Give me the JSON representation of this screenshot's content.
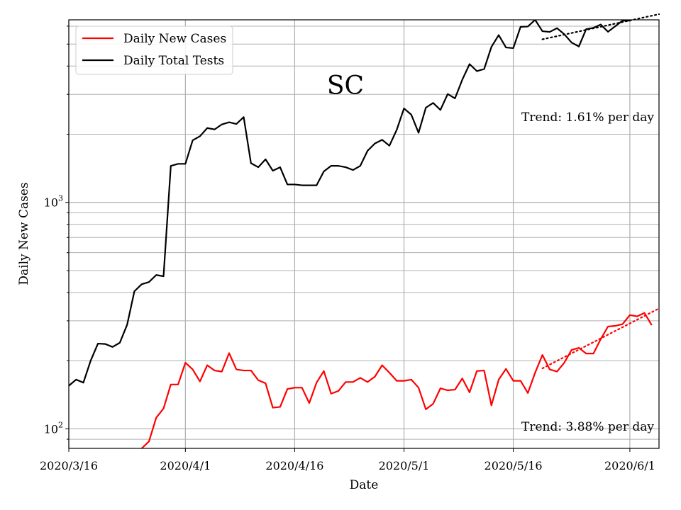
{
  "chart_data": {
    "type": "line",
    "title": "SC",
    "xlabel": "Date",
    "ylabel": "Daily New Cases",
    "y_scale": "log",
    "ylim": [
      82,
      6400
    ],
    "grid": true,
    "legend_position": "top-left",
    "x_range": [
      "2020-03-16",
      "2020-06-05"
    ],
    "x_tick_labels": [
      "2020/3/16",
      "2020/4/1",
      "2020/4/16",
      "2020/5/1",
      "2020/5/16",
      "2020/6/1"
    ],
    "x_tick_dates": [
      "2020-03-16",
      "2020-04-01",
      "2020-04-16",
      "2020-05-01",
      "2020-05-16",
      "2020-06-01"
    ],
    "y_tick_labels": [
      {
        "base": "10",
        "exp": "2",
        "value": 100
      },
      {
        "base": "10",
        "exp": "3",
        "value": 1000
      }
    ],
    "series": [
      {
        "name": "Daily New Cases",
        "color": "#ff0000",
        "start_date": "2020-03-26",
        "values": [
          82,
          88,
          112,
          123,
          157,
          157,
          196,
          183,
          162,
          191,
          181,
          179,
          216,
          183,
          181,
          181,
          164,
          159,
          124,
          125,
          150,
          152,
          152,
          130,
          160,
          180,
          143,
          147,
          161,
          161,
          168,
          161,
          170,
          191,
          177,
          163,
          163,
          165,
          152,
          122,
          129,
          151,
          148,
          149,
          167,
          145,
          180,
          181,
          127,
          165,
          184,
          163,
          163,
          144,
          177,
          212,
          183,
          179,
          196,
          223,
          228,
          215,
          215,
          249,
          283,
          285,
          290,
          318,
          314,
          325,
          287
        ]
      },
      {
        "name": "Daily Total Tests",
        "color": "#000000",
        "start_date": "2020-03-16",
        "values": [
          155,
          165,
          160,
          200,
          238,
          237,
          230,
          240,
          288,
          405,
          435,
          445,
          478,
          472,
          1450,
          1480,
          1480,
          1880,
          1960,
          2130,
          2100,
          2210,
          2260,
          2220,
          2380,
          1490,
          1430,
          1550,
          1380,
          1430,
          1200,
          1200,
          1190,
          1190,
          1190,
          1370,
          1450,
          1450,
          1430,
          1390,
          1450,
          1690,
          1820,
          1890,
          1780,
          2090,
          2600,
          2440,
          2030,
          2620,
          2750,
          2560,
          3010,
          2880,
          3480,
          4080,
          3800,
          3880,
          4860,
          5480,
          4830,
          4800,
          5960,
          5980,
          6400,
          5700,
          5660,
          5880,
          5530,
          5080,
          4880,
          5820,
          5900,
          6100,
          5670,
          6000,
          6350,
          6350,
          6900,
          6920,
          7100
        ]
      }
    ],
    "trends": [
      {
        "series": "Daily Total Tests",
        "text": "Trend: 1.61% per day",
        "start_date": "2020-05-20",
        "start_value": 5250,
        "rate_percent": 1.61
      },
      {
        "series": "Daily New Cases",
        "text": "Trend: 3.88% per day",
        "start_date": "2020-05-20",
        "start_value": 185,
        "rate_percent": 3.88
      }
    ]
  }
}
